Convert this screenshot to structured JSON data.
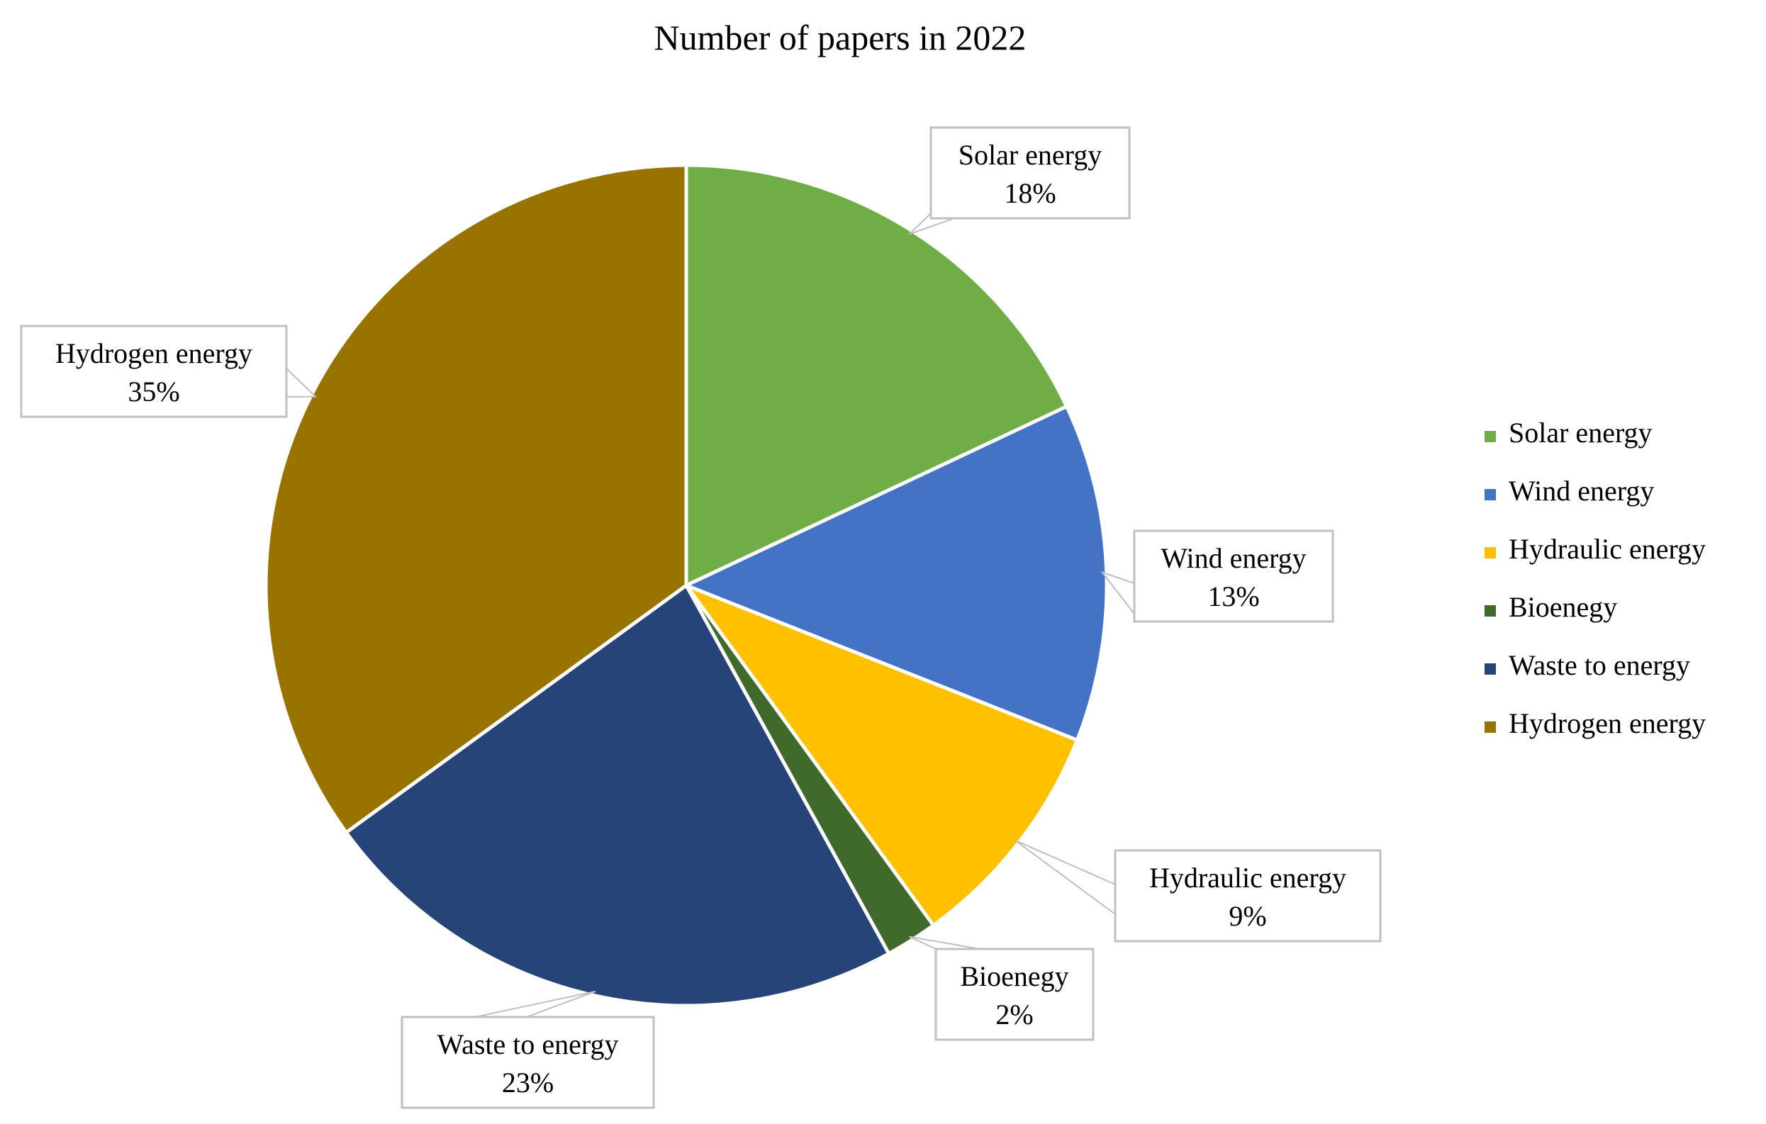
{
  "chart_data": {
    "type": "pie",
    "title": "Number of papers in 2022",
    "legend_position": "right",
    "slices": [
      {
        "name": "Solar energy",
        "value": 18,
        "label": "18%",
        "color": "#70AD47"
      },
      {
        "name": "Wind energy",
        "value": 13,
        "label": "13%",
        "color": "#4472C4"
      },
      {
        "name": "Hydraulic energy",
        "value": 9,
        "label": "9%",
        "color": "#FFC000"
      },
      {
        "name": "Bioenegy",
        "value": 2,
        "label": "2%",
        "color": "#3F6A2C"
      },
      {
        "name": "Waste to energy",
        "value": 23,
        "label": "23%",
        "color": "#264478"
      },
      {
        "name": "Hydrogen energy",
        "value": 35,
        "label": "35%",
        "color": "#997300"
      }
    ]
  }
}
